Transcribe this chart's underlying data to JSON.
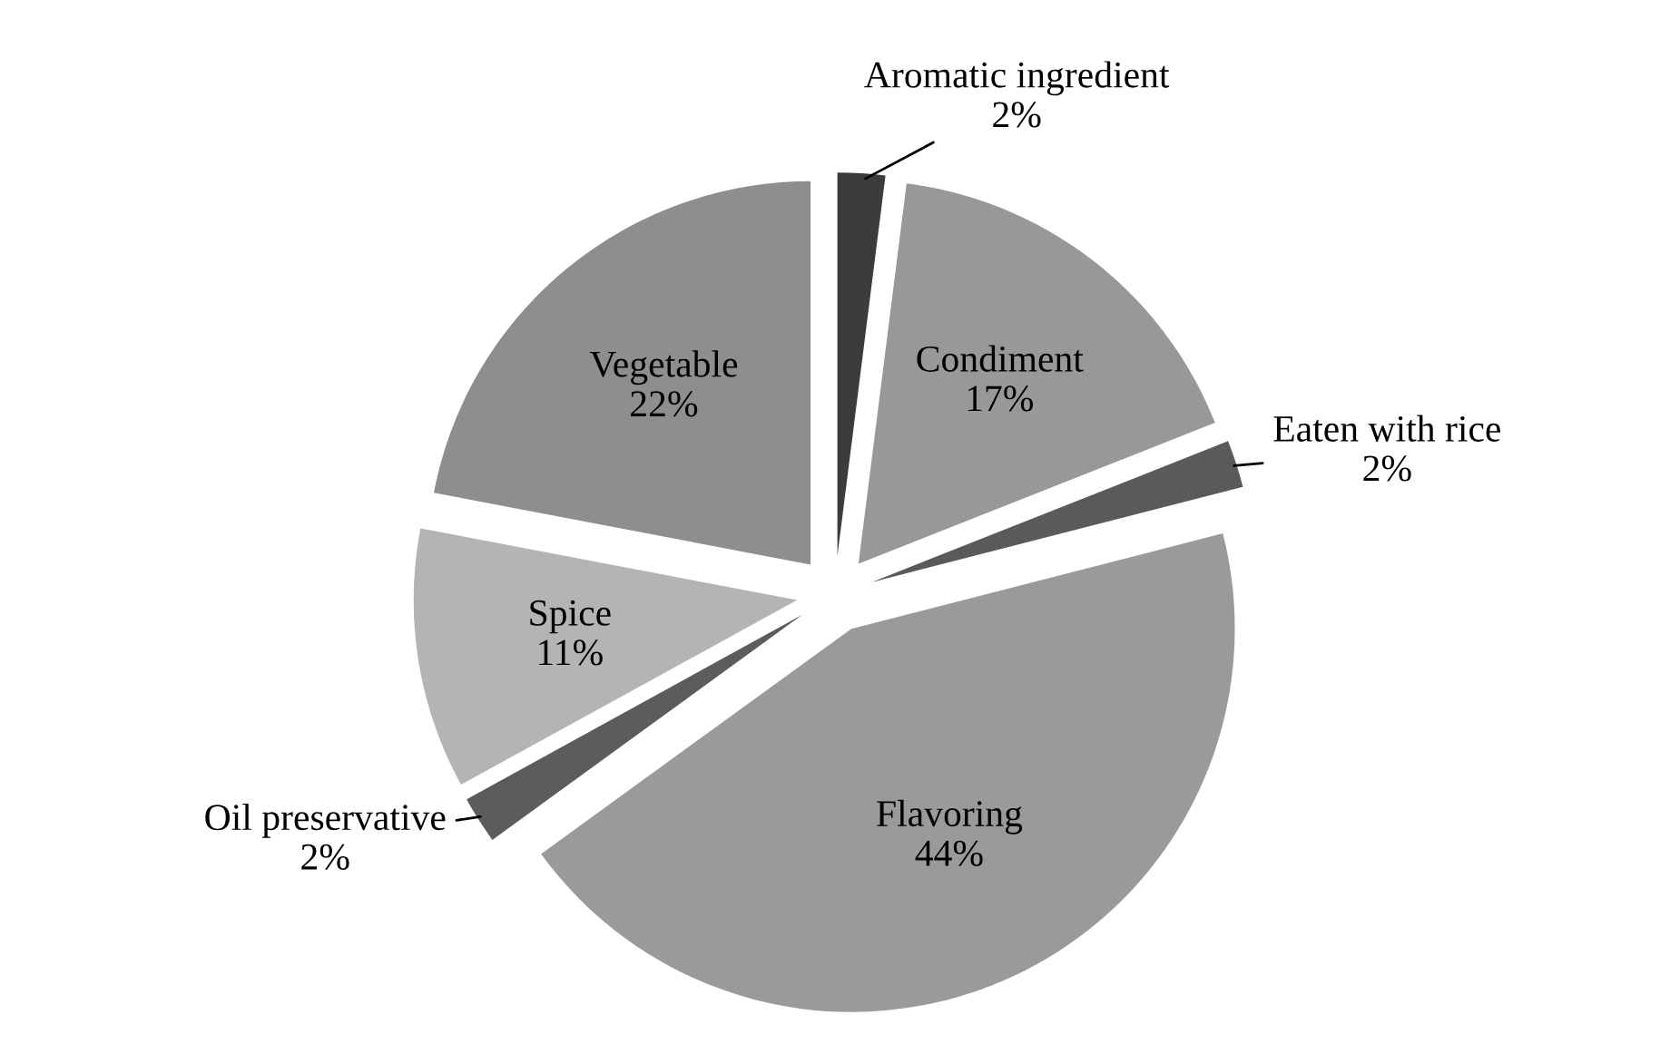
{
  "chart_data": {
    "type": "pie",
    "categories": [
      "Aromatic ingredient",
      "Condiment",
      "Eaten with rice",
      "Flavoring",
      "Oil preservative",
      "Spice",
      "Vegetable"
    ],
    "values": [
      2,
      17,
      2,
      44,
      2,
      11,
      22
    ],
    "value_labels": [
      "2%",
      "17%",
      "2%",
      "44%",
      "2%",
      "11%",
      "22%"
    ],
    "colors": [
      "#3c3c3c",
      "#989898",
      "#5a5a5a",
      "#9a9a9a",
      "#5c5c5c",
      "#b4b4b4",
      "#8e8e8e"
    ],
    "legend": false
  }
}
